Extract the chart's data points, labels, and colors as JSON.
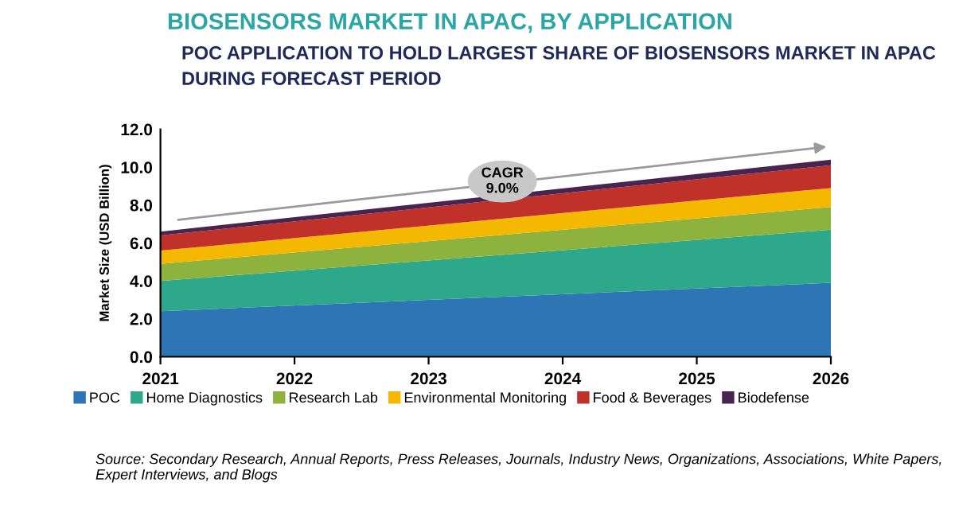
{
  "chart_data": {
    "type": "area",
    "stacked": true,
    "title": "BIOSENSORS MARKET IN APAC, BY APPLICATION",
    "subtitle": "POC APPLICATION TO HOLD LARGEST SHARE OF BIOSENSORS MARKET IN APAC\nDURING FORECAST PERIOD",
    "ylabel": "Market Size (USD Billion)",
    "x": [
      2021,
      2026
    ],
    "series": [
      {
        "name": "POC",
        "color": "#2e75b6",
        "values": [
          2.4,
          3.9
        ]
      },
      {
        "name": "Home Diagnostics",
        "color": "#2ea88a",
        "values": [
          1.6,
          2.8
        ]
      },
      {
        "name": "Research Lab",
        "color": "#8db33e",
        "values": [
          0.9,
          1.2
        ]
      },
      {
        "name": "Environmental Monitoring",
        "color": "#f5b800",
        "values": [
          0.7,
          1.0
        ]
      },
      {
        "name": "Food & Beverages",
        "color": "#c0312a",
        "values": [
          0.8,
          1.2
        ]
      },
      {
        "name": "Biodefense",
        "color": "#4a2450",
        "values": [
          0.2,
          0.3
        ]
      }
    ],
    "xlim": [
      2021,
      2026
    ],
    "xticks": [
      2021,
      2022,
      2023,
      2024,
      2025,
      2026
    ],
    "ylim": [
      0,
      12
    ],
    "yticks": [
      {
        "value": 0,
        "label": "0.0"
      },
      {
        "value": 2,
        "label": "2.0"
      },
      {
        "value": 4,
        "label": "4.0"
      },
      {
        "value": 6,
        "label": "6.0"
      },
      {
        "value": 8,
        "label": "8.0"
      },
      {
        "value": 10,
        "label": "10.0"
      },
      {
        "value": 12,
        "label": "12.0"
      }
    ],
    "grid": false,
    "legend": "bottom",
    "annotations": [
      "CAGR\n9.0%",
      "Source: Secondary Research, Annual Reports, Press Releases, Journals, Industry News, Organizations, Associations, White Papers, Expert Interviews, and Blogs"
    ]
  }
}
